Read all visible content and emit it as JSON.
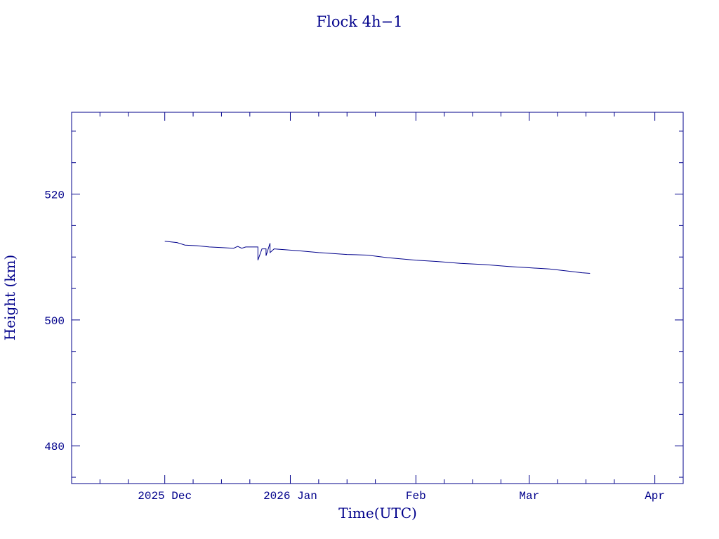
{
  "chart_data": {
    "type": "line",
    "title": "Flock 4h−1",
    "xlabel": "Time(UTC)",
    "ylabel": "Height (km)",
    "xlim": [
      "2025-11-08",
      "2026-04-08"
    ],
    "ylim": [
      474,
      533
    ],
    "x_ticks": [
      {
        "date": "2025-12-01",
        "label": "2025 Dec"
      },
      {
        "date": "2026-01-01",
        "label": "2026 Jan"
      },
      {
        "date": "2026-02-01",
        "label": "Feb"
      },
      {
        "date": "2026-03-01",
        "label": "Mar"
      },
      {
        "date": "2026-04-01",
        "label": "Apr"
      }
    ],
    "y_ticks": [
      {
        "value": 480,
        "label": "480"
      },
      {
        "value": 500,
        "label": "500"
      },
      {
        "value": 520,
        "label": "520"
      }
    ],
    "grid": false,
    "color": "#00008b",
    "series": [
      {
        "points": [
          [
            "2025-12-01",
            512.5
          ],
          [
            "2025-12-04",
            512.3
          ],
          [
            "2025-12-06",
            511.9
          ],
          [
            "2025-12-09",
            511.8
          ],
          [
            "2025-12-12",
            511.6
          ],
          [
            "2025-12-15",
            511.5
          ],
          [
            "2025-12-18",
            511.4
          ],
          [
            "2025-12-19",
            511.7
          ],
          [
            "2025-12-20",
            511.4
          ],
          [
            "2025-12-21",
            511.6
          ],
          [
            "2025-12-24",
            511.6
          ],
          [
            "2025-12-24",
            509.5
          ],
          [
            "2025-12-25",
            511.3
          ],
          [
            "2025-12-26",
            511.3
          ],
          [
            "2025-12-26",
            510.2
          ],
          [
            "2025-12-27",
            512.2
          ],
          [
            "2025-12-27",
            510.7
          ],
          [
            "2025-12-28",
            511.3
          ],
          [
            "2026-01-03",
            511.0
          ],
          [
            "2026-01-08",
            510.7
          ],
          [
            "2026-01-15",
            510.4
          ],
          [
            "2026-01-20",
            510.3
          ],
          [
            "2026-01-25",
            509.9
          ],
          [
            "2026-02-01",
            509.5
          ],
          [
            "2026-02-06",
            509.3
          ],
          [
            "2026-02-12",
            509.0
          ],
          [
            "2026-02-18",
            508.8
          ],
          [
            "2026-02-24",
            508.5
          ],
          [
            "2026-03-01",
            508.3
          ],
          [
            "2026-03-06",
            508.1
          ],
          [
            "2026-03-10",
            507.8
          ],
          [
            "2026-03-14",
            507.5
          ],
          [
            "2026-03-16",
            507.4
          ]
        ]
      }
    ]
  }
}
